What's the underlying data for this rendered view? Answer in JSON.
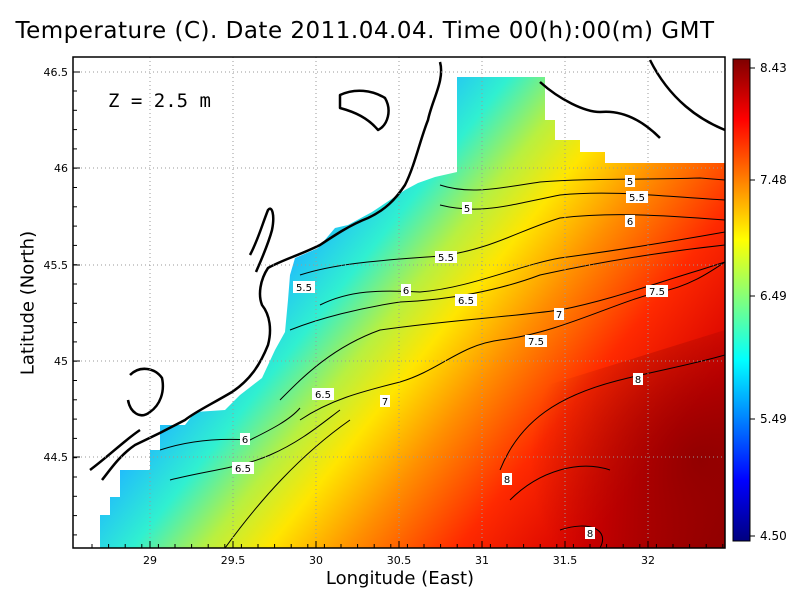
{
  "title": "Temperature (C). Date 2011.04.04. Time 00(h):00(m) GMT",
  "depth_label": "Z = 2.5 m",
  "x_axis": {
    "label": "Longitude (East)",
    "ticks": [
      "29",
      "29.5",
      "30",
      "30.5",
      "31",
      "31.5",
      "32"
    ]
  },
  "y_axis": {
    "label": "Latitude (North)",
    "ticks": [
      "46.5",
      "46",
      "45.5",
      "45",
      "44.5"
    ]
  },
  "colorbar": {
    "ticks": [
      "8.43",
      "7.48",
      "6.49",
      "5.49",
      "4.50"
    ],
    "colors": [
      "#00007f",
      "#0000ff",
      "#007fff",
      "#00ffff",
      "#7fff7f",
      "#ffff00",
      "#ff7f00",
      "#ff0000",
      "#7f0000"
    ]
  },
  "contour_labels": [
    "5",
    "5.5",
    "5",
    "5.5",
    "6",
    "5.5",
    "6",
    "6.5",
    "7",
    "7.5",
    "7.5",
    "8",
    "6.5",
    "7",
    "6",
    "6.5",
    "8",
    "8"
  ],
  "colors": {
    "land": "#ffffff",
    "coastline": "#000000",
    "grid": "#9a9a9a"
  }
}
